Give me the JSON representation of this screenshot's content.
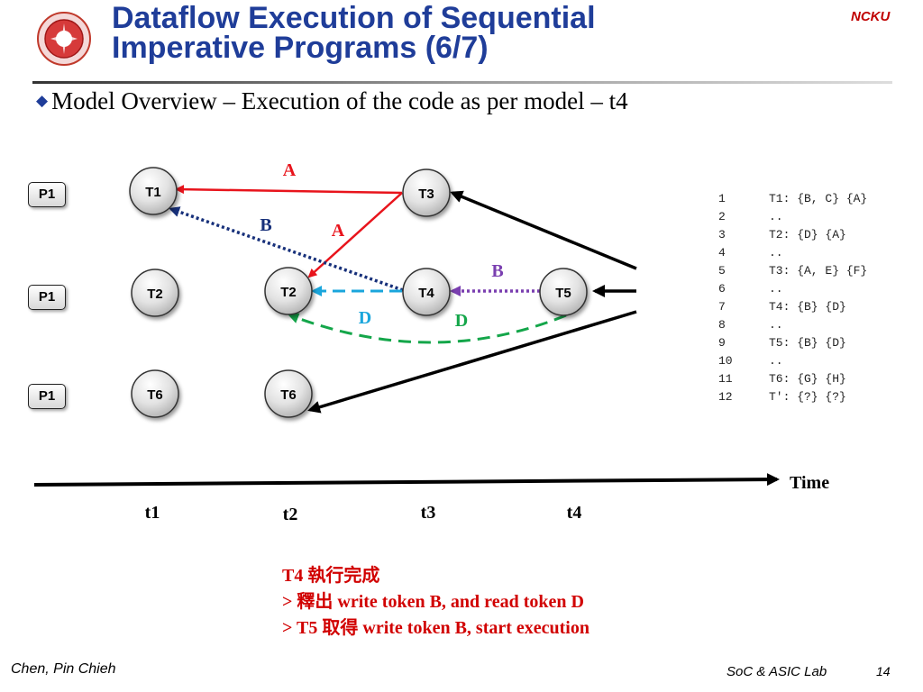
{
  "header": {
    "title_line1": "Dataflow Execution of Sequential",
    "title_line2": "Imperative Programs (6/7)",
    "brand": "NCKU"
  },
  "bullet": "Model Overview – Execution of the code as per model – t4",
  "diagram": {
    "processors": [
      "P1",
      "P1",
      "P1"
    ],
    "nodes": {
      "t1_top": "T1",
      "t1_mid": "T2",
      "t1_bot": "T6",
      "t2_mid": "T2",
      "t2_bot": "T6",
      "t3_top": "T3",
      "t3_mid": "T4",
      "t4_mid": "T5"
    },
    "edge_labels": {
      "a_top": "A",
      "a_mid": "A",
      "b_left": "B",
      "b_right": "B",
      "d_left": "D",
      "d_right": "D"
    },
    "colors": {
      "A": "#e8141c",
      "B": "#17307a",
      "B_purple": "#7a3fb0",
      "D_cyan": "#1aa6dc",
      "D_green": "#14a64a"
    },
    "time_label": "Time",
    "time_steps": [
      "t1",
      "t2",
      "t3",
      "t4"
    ]
  },
  "code": [
    {
      "n": "1",
      "t": "T1: {B, C} {A}"
    },
    {
      "n": "2",
      "t": ".."
    },
    {
      "n": "3",
      "t": "T2: {D} {A}"
    },
    {
      "n": "4",
      "t": ".."
    },
    {
      "n": "5",
      "t": "T3: {A, E} {F}"
    },
    {
      "n": "6",
      "t": ".."
    },
    {
      "n": "7",
      "t": "T4: {B} {D}"
    },
    {
      "n": "8",
      "t": ".."
    },
    {
      "n": "9",
      "t": "T5: {B} {D}"
    },
    {
      "n": "10",
      "t": ".."
    },
    {
      "n": "11",
      "t": "T6: {G} {H}"
    },
    {
      "n": "12",
      "t": "T': {?} {?}"
    }
  ],
  "note": {
    "line1": "T4 執行完成",
    "line2": "> 釋出 write token B, and read token D",
    "line3": "> T5 取得 write token B, start execution"
  },
  "footer": {
    "author": "Chen, Pin  Chieh",
    "lab": "SoC & ASIC Lab",
    "page": "14"
  }
}
